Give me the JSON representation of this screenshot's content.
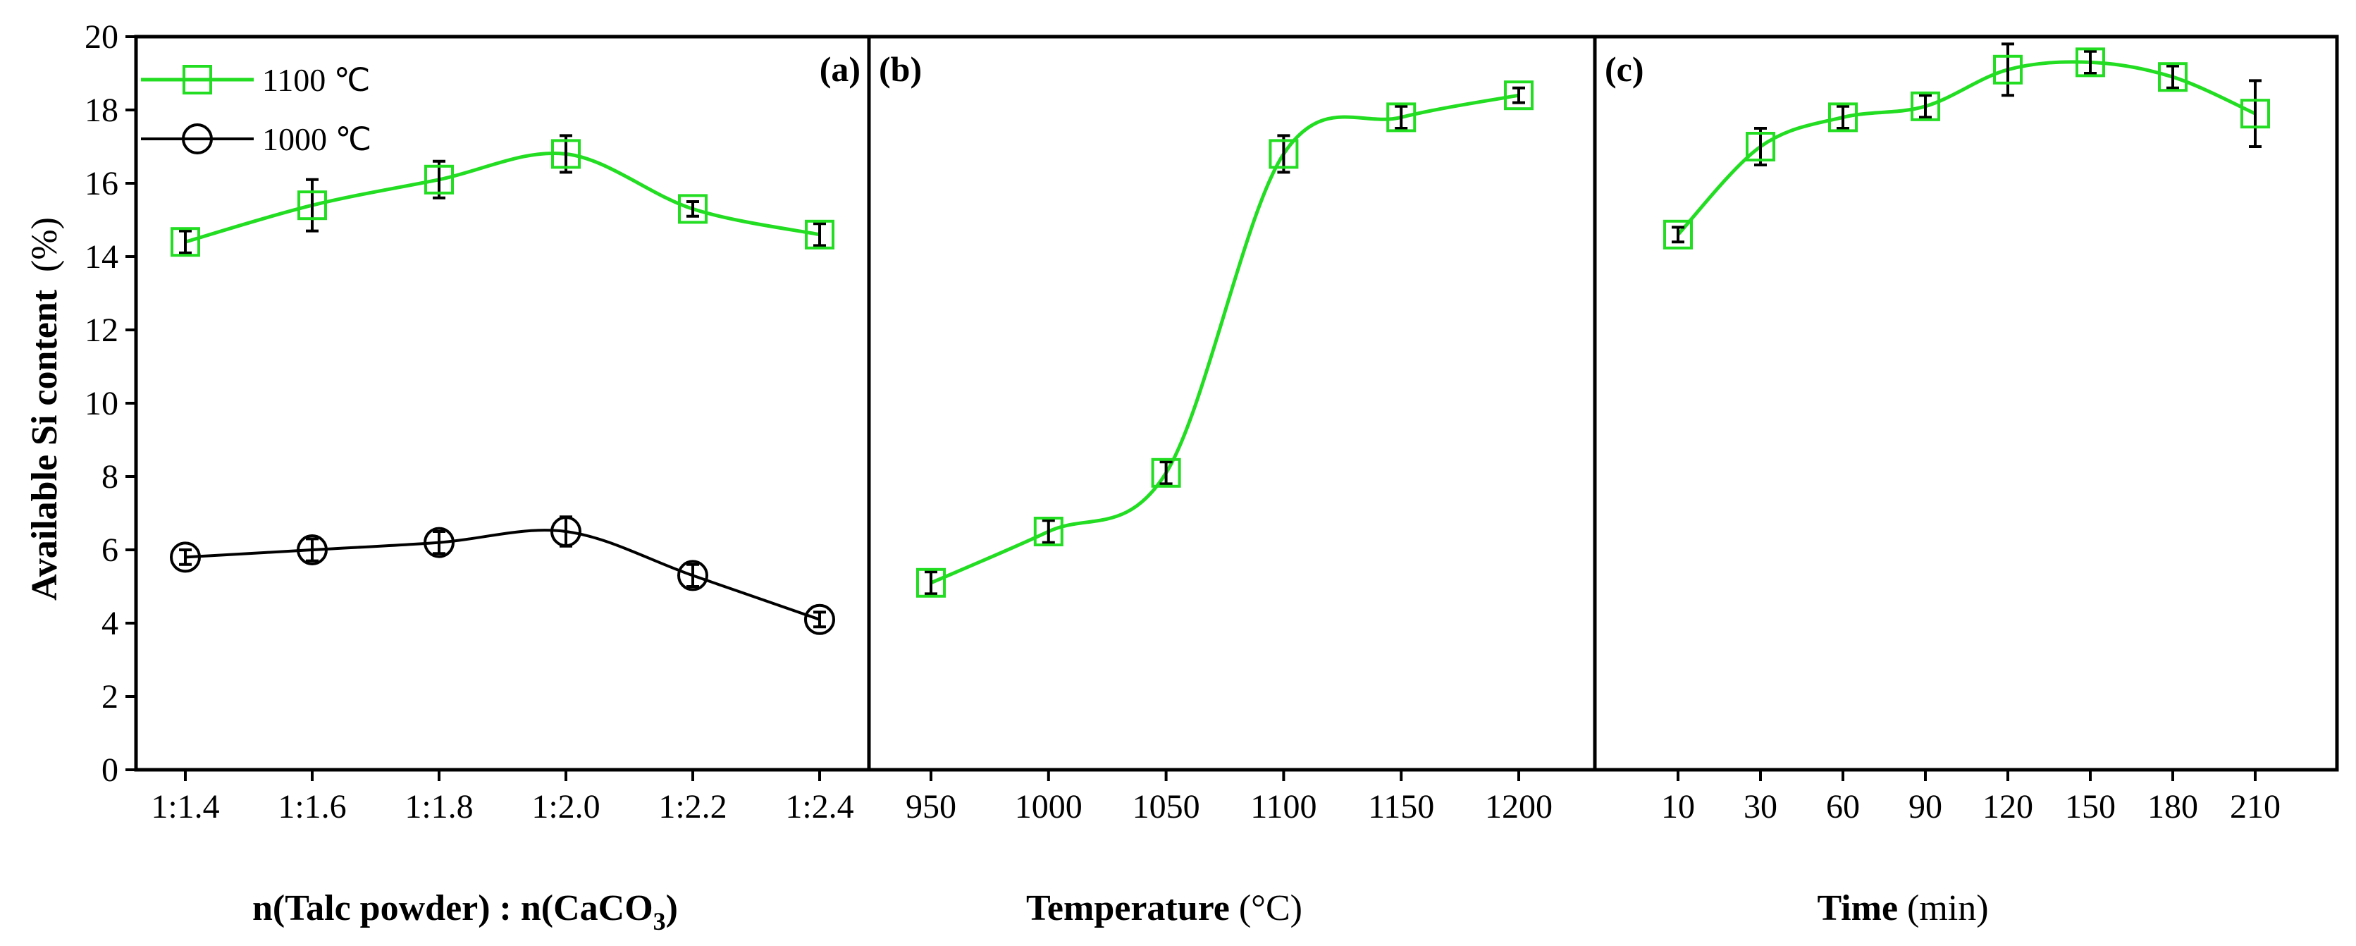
{
  "chart_data": {
    "type": "line",
    "ylabel": "Available Si content",
    "ylabel_unit": "(%)",
    "ylim": [
      0,
      20
    ],
    "yticks": [
      "0",
      "2",
      "4",
      "6",
      "8",
      "10",
      "12",
      "14",
      "16",
      "18",
      "20"
    ],
    "colors": {
      "green": "#22dd22",
      "black": "#000000"
    },
    "legend": [
      {
        "name": "1100 ℃",
        "marker": "square",
        "color": "#22dd22"
      },
      {
        "name": "1000 ℃",
        "marker": "circle",
        "color": "#000000"
      }
    ],
    "panels": [
      {
        "label": "(a)",
        "xlabel_bold": "n(Talc powder) : n(CaCO",
        "xlabel_sub": "3",
        "xlabel_tail": ")",
        "categories": [
          "1:1.4",
          "1:1.6",
          "1:1.8",
          "1:2.0",
          "1:2.2",
          "1:2.4"
        ],
        "series": [
          {
            "name": "1100 ℃",
            "marker": "square",
            "color": "#22dd22",
            "values": [
              14.4,
              15.4,
              16.1,
              16.8,
              15.3,
              14.6
            ],
            "errors": [
              0.3,
              0.7,
              0.5,
              0.5,
              0.2,
              0.3
            ]
          },
          {
            "name": "1000 ℃",
            "marker": "circle",
            "color": "#000000",
            "values": [
              5.8,
              6.0,
              6.2,
              6.5,
              5.3,
              4.1
            ],
            "errors": [
              0.2,
              0.3,
              0.3,
              0.4,
              0.3,
              0.2
            ]
          }
        ]
      },
      {
        "label": "(b)",
        "xlabel_bold": "Temperature",
        "xlabel_normal": " (°C)",
        "categories": [
          "950",
          "1000",
          "1050",
          "1100",
          "1150",
          "1200"
        ],
        "series": [
          {
            "name": "1100 ℃",
            "marker": "square",
            "color": "#22dd22",
            "values": [
              5.1,
              6.5,
              8.1,
              16.8,
              17.8,
              18.4
            ],
            "errors": [
              0.3,
              0.3,
              0.3,
              0.5,
              0.3,
              0.2
            ]
          }
        ]
      },
      {
        "label": "(c)",
        "xlabel_bold": "Time",
        "xlabel_normal": " (min)",
        "categories": [
          "10",
          "30",
          "60",
          "90",
          "120",
          "150",
          "180",
          "210"
        ],
        "series": [
          {
            "name": "1100 ℃",
            "marker": "square",
            "color": "#22dd22",
            "values": [
              14.6,
              17.0,
              17.8,
              18.1,
              19.1,
              19.3,
              18.9,
              17.9
            ],
            "errors": [
              0.2,
              0.5,
              0.3,
              0.3,
              0.7,
              0.3,
              0.3,
              0.9
            ]
          }
        ]
      }
    ]
  }
}
